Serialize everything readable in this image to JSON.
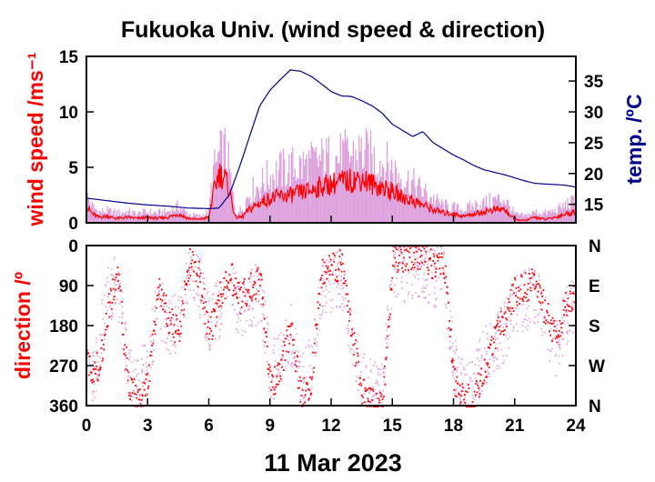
{
  "title": "Fukuoka Univ. (wind speed & direction)",
  "date_label": "11 Mar 2023",
  "colors": {
    "mean": "#ff0000",
    "gust": "#dda0dd",
    "temp": "#00008b",
    "axis": "#000000"
  },
  "chart_data": [
    {
      "type": "line",
      "panel": "wind speed and temperature",
      "ylabel": "wind speed /ms⁻¹",
      "ylabel2": "temp. /ºC",
      "xlim": [
        0,
        24
      ],
      "ylim": [
        0,
        15
      ],
      "ylim2": [
        12,
        39
      ],
      "xticks": [
        0,
        3,
        6,
        9,
        12,
        15,
        18,
        21,
        24
      ],
      "yticks": [
        0,
        5,
        10,
        15
      ],
      "yticks2": [
        15,
        20,
        25,
        30,
        35
      ],
      "grid": false,
      "legend": "none",
      "series": [
        {
          "role": "wind speed (mean)",
          "color": "#ff0000",
          "x": [
            0,
            0.3,
            0.6,
            1,
            1.5,
            2,
            2.5,
            3,
            3.5,
            4,
            4.5,
            5,
            5.5,
            6,
            6.2,
            6.5,
            6.8,
            7,
            7.3,
            7.6,
            8,
            8.5,
            9,
            9.5,
            10,
            10.5,
            11,
            11.5,
            12,
            12.5,
            13,
            13.5,
            14,
            14.5,
            15,
            15.5,
            16,
            16.5,
            17,
            17.5,
            18,
            18.5,
            19,
            19.5,
            20,
            20.5,
            21,
            21.5,
            22,
            22.5,
            23,
            23.5,
            24
          ],
          "y": [
            1.5,
            0.8,
            0.5,
            0.6,
            0.4,
            0.5,
            0.4,
            0.5,
            0.4,
            0.5,
            0.8,
            0.4,
            0.3,
            0.5,
            2.5,
            4.5,
            4,
            3,
            0.5,
            0.5,
            1.2,
            1.8,
            2.2,
            2.4,
            2.5,
            2.7,
            2.9,
            3.3,
            3.5,
            3.7,
            3.8,
            4,
            3.5,
            3.2,
            2.8,
            2.3,
            2,
            1.6,
            1.2,
            0.9,
            0.8,
            0.6,
            0.8,
            1,
            1.2,
            1.2,
            0.3,
            0.2,
            0.5,
            0.3,
            0.5,
            0.8,
            1
          ]
        },
        {
          "role": "wind speed (gust)",
          "color": "#dda0dd",
          "x": [
            0,
            0.3,
            0.6,
            1,
            1.5,
            2,
            2.5,
            3,
            3.5,
            4,
            4.5,
            5,
            5.5,
            6,
            6.2,
            6.5,
            6.8,
            7,
            7.3,
            7.6,
            8,
            8.5,
            9,
            9.5,
            10,
            10.5,
            11,
            11.5,
            12,
            12.5,
            13,
            13.5,
            14,
            14.5,
            15,
            15.5,
            16,
            16.5,
            17,
            17.5,
            18,
            18.5,
            19,
            19.5,
            20,
            20.5,
            21,
            21.5,
            22,
            22.5,
            23,
            23.5,
            24
          ],
          "y": [
            2.5,
            1.5,
            1,
            1.1,
            0.9,
            1,
            0.8,
            1,
            0.9,
            1,
            1.5,
            0.8,
            0.6,
            1,
            4.5,
            6,
            6.5,
            5,
            1,
            1.2,
            2.8,
            3.5,
            4.3,
            4.8,
            5,
            5.2,
            5.4,
            5.7,
            5.9,
            6,
            6.2,
            6.4,
            6,
            5.6,
            5,
            4.2,
            3.6,
            2.9,
            2.2,
            1.6,
            1.4,
            1.2,
            1.6,
            1.8,
            2.1,
            2.2,
            0.8,
            0.6,
            1,
            0.9,
            1.1,
            1.6,
            2
          ]
        },
        {
          "role": "temperature",
          "axis": "right",
          "color": "#00008b",
          "x": [
            0,
            1,
            2,
            3,
            4,
            5,
            6,
            6.5,
            7,
            7.5,
            8,
            8.5,
            9,
            9.5,
            10,
            10.5,
            11,
            11.5,
            12,
            12.5,
            13,
            13.5,
            14,
            14.5,
            15,
            15.5,
            16,
            16.5,
            17,
            17.5,
            18,
            18.5,
            19,
            19.5,
            20,
            20.5,
            21,
            21.5,
            22,
            22.5,
            23,
            23.5,
            24
          ],
          "y": [
            16,
            15.6,
            15.2,
            14.9,
            14.7,
            14.4,
            14.3,
            14.4,
            16.5,
            21,
            26,
            31,
            33.5,
            35.2,
            36.8,
            36.6,
            35.8,
            34.6,
            33.3,
            32.6,
            32.5,
            31.8,
            31,
            29.8,
            28,
            27,
            26,
            26.8,
            25,
            24,
            23,
            22.2,
            21.3,
            20.6,
            20.2,
            19.8,
            19.3,
            18.8,
            18.4,
            18.3,
            18.2,
            18.1,
            17.8
          ]
        }
      ]
    },
    {
      "type": "scatter",
      "panel": "wind direction",
      "ylabel": "direction /º",
      "xlabel": "11 Mar 2023",
      "xlim": [
        0,
        24
      ],
      "ylim": [
        360,
        0
      ],
      "xticks": [
        0,
        3,
        6,
        9,
        12,
        15,
        18,
        21,
        24
      ],
      "yticks": [
        0,
        90,
        180,
        270,
        360
      ],
      "yticks2": [
        "N",
        "E",
        "S",
        "W",
        "N"
      ],
      "grid": false,
      "legend": "none",
      "series": [
        {
          "role": "direction (mean)",
          "color": "#ff0000",
          "x": [
            0,
            0.3,
            0.6,
            1,
            1.5,
            2,
            2.5,
            3,
            3.5,
            4,
            4.5,
            5,
            5.5,
            6,
            6.5,
            7,
            7.5,
            8,
            8.5,
            9,
            9.5,
            10,
            10.5,
            11,
            11.5,
            12,
            12.5,
            13,
            13.5,
            14,
            14.5,
            15,
            15.5,
            16,
            16.5,
            17,
            17.5,
            18,
            18.5,
            19,
            19.5,
            20,
            20.5,
            21,
            21.5,
            22,
            22.5,
            23,
            23.5,
            24
          ],
          "y": [
            265,
            275,
            270,
            150,
            60,
            300,
            350,
            310,
            100,
            160,
            200,
            40,
            60,
            200,
            110,
            60,
            120,
            90,
            80,
            320,
            280,
            180,
            340,
            300,
            60,
            50,
            40,
            200,
            330,
            350,
            360,
            20,
            30,
            15,
            20,
            40,
            30,
            300,
            350,
            340,
            280,
            200,
            160,
            100,
            90,
            80,
            150,
            210,
            130,
            90
          ]
        },
        {
          "role": "direction (scatter)",
          "color": "#dda0dd",
          "x": [
            0,
            0.3,
            0.6,
            1,
            1.5,
            2,
            2.5,
            3,
            3.5,
            4,
            4.5,
            5,
            5.5,
            6,
            6.5,
            7,
            7.5,
            8,
            8.5,
            9,
            9.5,
            10,
            10.5,
            11,
            11.5,
            12,
            12.5,
            13,
            13.5,
            14,
            14.5,
            15,
            15.5,
            16,
            16.5,
            17,
            17.5,
            18,
            18.5,
            19,
            19.5,
            20,
            20.5,
            21,
            21.5,
            22,
            22.5,
            23,
            23.5,
            24
          ],
          "y": [
            240,
            300,
            220,
            120,
            80,
            280,
            320,
            260,
            130,
            190,
            170,
            70,
            90,
            170,
            140,
            90,
            150,
            120,
            100,
            290,
            250,
            200,
            310,
            270,
            90,
            80,
            70,
            230,
            300,
            330,
            330,
            50,
            60,
            45,
            50,
            70,
            60,
            270,
            320,
            310,
            250,
            230,
            190,
            130,
            120,
            110,
            180,
            240,
            160,
            110
          ]
        }
      ]
    }
  ]
}
